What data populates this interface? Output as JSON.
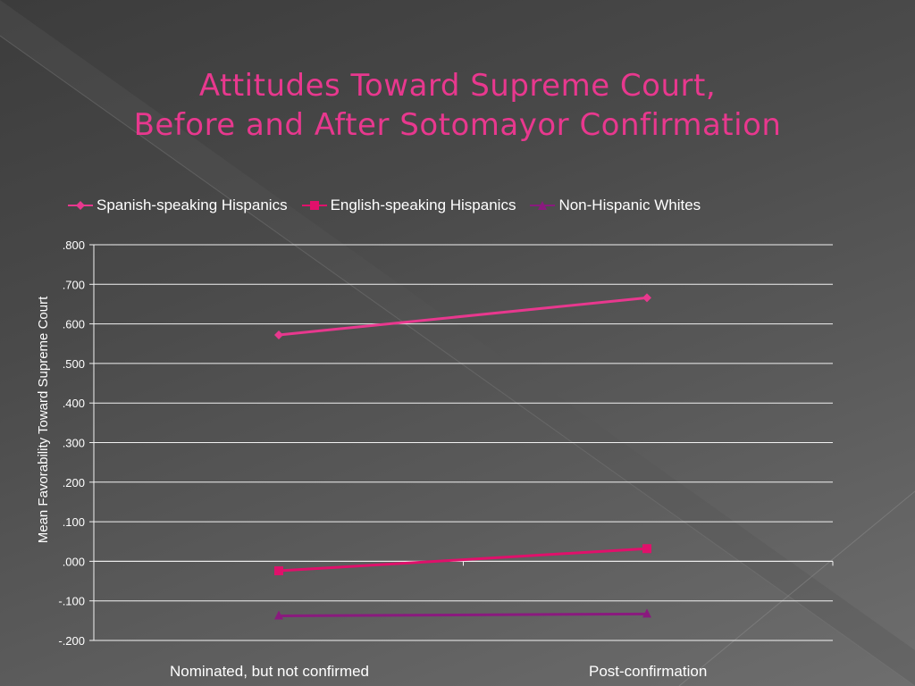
{
  "title_line1": "Attitudes Toward Supreme Court,",
  "title_line2": "Before and After Sotomayor Confirmation",
  "colors": {
    "title": "#e8388e",
    "spanish": "#e8388e",
    "english": "#e0106b",
    "whites": "#8a1a7e"
  },
  "chart_data": {
    "type": "line",
    "categories": [
      "Nominated, but not confirmed",
      "Post-confirmation"
    ],
    "series": [
      {
        "name": "Spanish-speaking Hispanics",
        "values": [
          0.572,
          0.666
        ],
        "marker": "diamond",
        "color": "#e8388e"
      },
      {
        "name": "English-speaking Hispanics",
        "values": [
          -0.024,
          0.032
        ],
        "marker": "square",
        "color": "#e0106b"
      },
      {
        "name": "Non-Hispanic Whites",
        "values": [
          -0.138,
          -0.133
        ],
        "marker": "triangle",
        "color": "#8a1a7e"
      }
    ],
    "ylabel": "Mean Favorability Toward Supreme Court",
    "xlabel": "",
    "ylim": [
      -0.2,
      0.8
    ],
    "yticks": [
      ".800",
      ".700",
      ".600",
      ".500",
      ".400",
      ".300",
      ".200",
      ".100",
      ".000",
      "-.100",
      "-.200"
    ],
    "grid": true,
    "legend": "top"
  }
}
